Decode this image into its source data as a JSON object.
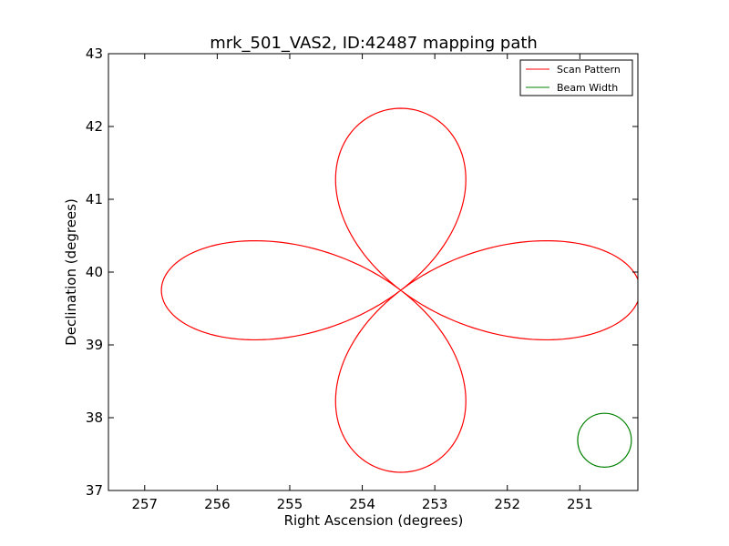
{
  "chart_data": {
    "type": "line",
    "title": "mrk_501_VAS2, ID:42487 mapping path",
    "xlabel": "Right Ascension (degrees)",
    "ylabel": "Declination (degrees)",
    "xlim": [
      257.5,
      250.2
    ],
    "ylim": [
      37,
      43
    ],
    "x_inverted": true,
    "xticks": [
      257,
      256,
      255,
      254,
      253,
      252,
      251
    ],
    "yticks": [
      37,
      38,
      39,
      40,
      41,
      42,
      43
    ],
    "grid": false,
    "legend_position": "top-right",
    "colors": {
      "scan": "#ff0000",
      "beam": "#008000"
    },
    "series": [
      {
        "name": "Scan Pattern",
        "kind": "rose",
        "center": [
          253.47,
          39.75
        ],
        "petals": 4,
        "ra_amplitude": 3.3,
        "dec_amplitude": 2.5
      },
      {
        "name": "Beam Width",
        "kind": "circle",
        "center": [
          250.66,
          37.69
        ],
        "radius": 0.37
      }
    ]
  }
}
